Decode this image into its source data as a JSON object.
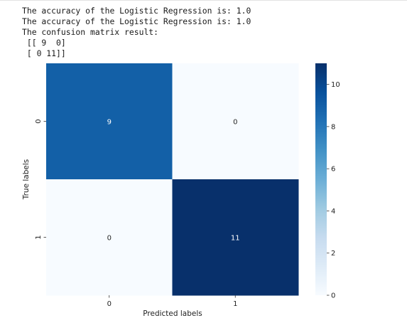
{
  "console": {
    "lines": [
      "The accuracy of the Logistic Regression is: 1.0",
      "The accuracy of the Logistic Regression is: 1.0",
      "The confusion matrix result:",
      " [[ 9  0]",
      " [ 0 11]]"
    ]
  },
  "chart_data": {
    "type": "heatmap",
    "title": "",
    "xlabel": "Predicted labels",
    "ylabel": "True labels",
    "x_categories": [
      "0",
      "1"
    ],
    "y_categories": [
      "0",
      "1"
    ],
    "values": [
      [
        9,
        0
      ],
      [
        0,
        11
      ]
    ],
    "annotations": [
      "9",
      "0",
      "0",
      "11"
    ],
    "colormap": "Blues",
    "colorbar": {
      "min": 0,
      "max": 11,
      "ticks": [
        0,
        2,
        4,
        6,
        8,
        10
      ],
      "position": "right"
    },
    "grid": false,
    "colors": {
      "low": "#f7fbff",
      "high": "#08306b"
    }
  }
}
